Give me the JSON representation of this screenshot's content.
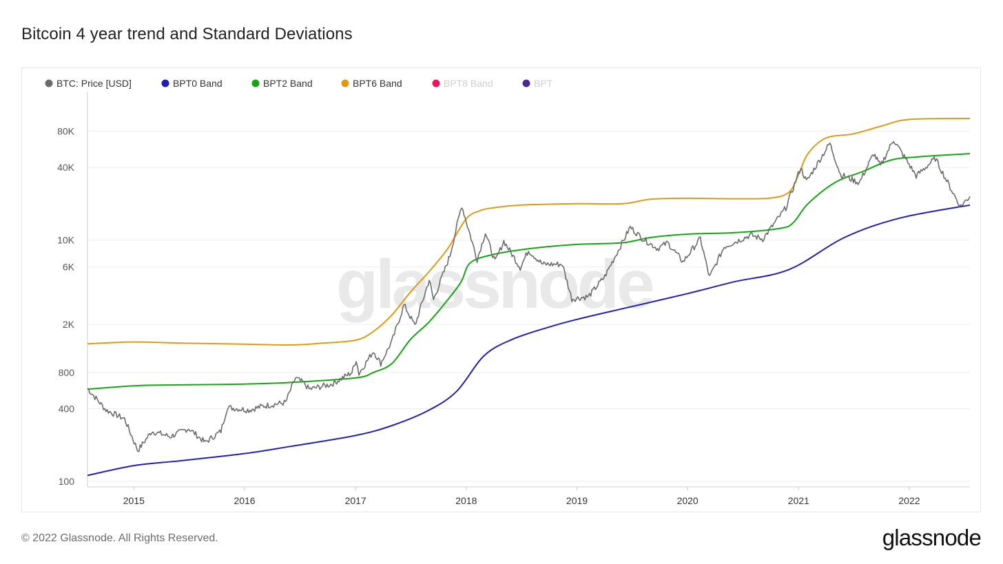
{
  "title": "Bitcoin 4 year trend and Standard Deviations",
  "footer": {
    "copyright": "© 2022 Glassnode. All Rights Reserved.",
    "logo_text": "glassnode"
  },
  "watermark": "glassnode",
  "colors": {
    "btc": "#6b6b6b",
    "bpt0": "#1f1fb4",
    "bpt2": "#13a613",
    "bpt6": "#e09a12",
    "bpt8": "#f0135e",
    "bpt": "#4a2a90",
    "grid": "#eeeeee",
    "axis": "#cccccc"
  },
  "chart_data": {
    "type": "line",
    "title": "Bitcoin 4 year trend and Standard Deviations",
    "y_scale": "log",
    "ylim": [
      90,
      170000
    ],
    "xlim": [
      "2014-08-01",
      "2022-07-20"
    ],
    "y_ticks": [
      {
        "value": 100,
        "label": "100"
      },
      {
        "value": 400,
        "label": "400"
      },
      {
        "value": 800,
        "label": "800"
      },
      {
        "value": 2000,
        "label": "2K"
      },
      {
        "value": 6000,
        "label": "6K"
      },
      {
        "value": 10000,
        "label": "10K"
      },
      {
        "value": 40000,
        "label": "40K"
      },
      {
        "value": 80000,
        "label": "80K"
      }
    ],
    "x_ticks": [
      "2015",
      "2016",
      "2017",
      "2018",
      "2019",
      "2020",
      "2021",
      "2022"
    ],
    "legend": {
      "placement": "top-left",
      "items": [
        {
          "key": "btc",
          "label": "BTC: Price [USD]",
          "active": true
        },
        {
          "key": "bpt0",
          "label": "BPT0 Band",
          "active": true
        },
        {
          "key": "bpt2",
          "label": "BPT2 Band",
          "active": true
        },
        {
          "key": "bpt6",
          "label": "BPT6 Band",
          "active": true
        },
        {
          "key": "bpt8",
          "label": "BPT8 Band",
          "active": false
        },
        {
          "key": "bpt",
          "label": "BPT",
          "active": false
        }
      ]
    },
    "grid": true,
    "series": [
      {
        "key": "bpt6",
        "name": "BPT6 Band",
        "points": [
          [
            "2014-08-01",
            1380
          ],
          [
            "2015-01-01",
            1430
          ],
          [
            "2015-06-01",
            1400
          ],
          [
            "2016-01-01",
            1370
          ],
          [
            "2016-06-01",
            1350
          ],
          [
            "2016-09-01",
            1390
          ],
          [
            "2017-01-01",
            1480
          ],
          [
            "2017-03-01",
            1750
          ],
          [
            "2017-05-01",
            2400
          ],
          [
            "2017-07-01",
            3700
          ],
          [
            "2017-09-01",
            5500
          ],
          [
            "2017-11-01",
            8500
          ],
          [
            "2018-01-01",
            15000
          ],
          [
            "2018-02-15",
            17500
          ],
          [
            "2018-04-01",
            18500
          ],
          [
            "2018-07-01",
            19500
          ],
          [
            "2019-01-01",
            20000
          ],
          [
            "2019-06-01",
            20000
          ],
          [
            "2019-09-01",
            21800
          ],
          [
            "2020-01-01",
            22200
          ],
          [
            "2020-06-01",
            22000
          ],
          [
            "2020-10-01",
            22300
          ],
          [
            "2020-12-01",
            25000
          ],
          [
            "2021-01-01",
            35000
          ],
          [
            "2021-02-01",
            52000
          ],
          [
            "2021-04-01",
            70000
          ],
          [
            "2021-07-01",
            76000
          ],
          [
            "2021-10-01",
            88000
          ],
          [
            "2022-01-01",
            100000
          ],
          [
            "2022-07-20",
            102000
          ]
        ]
      },
      {
        "key": "bpt2",
        "name": "BPT2 Band",
        "points": [
          [
            "2014-08-01",
            580
          ],
          [
            "2015-01-01",
            620
          ],
          [
            "2015-06-01",
            630
          ],
          [
            "2016-01-01",
            640
          ],
          [
            "2016-06-01",
            660
          ],
          [
            "2017-01-01",
            720
          ],
          [
            "2017-03-01",
            800
          ],
          [
            "2017-05-01",
            950
          ],
          [
            "2017-07-01",
            1500
          ],
          [
            "2017-09-01",
            2100
          ],
          [
            "2017-11-01",
            3200
          ],
          [
            "2017-12-15",
            4500
          ],
          [
            "2018-01-15",
            6500
          ],
          [
            "2018-04-01",
            7600
          ],
          [
            "2018-08-01",
            8500
          ],
          [
            "2019-01-01",
            9200
          ],
          [
            "2019-06-01",
            9500
          ],
          [
            "2019-09-01",
            10500
          ],
          [
            "2020-01-01",
            11200
          ],
          [
            "2020-06-01",
            11500
          ],
          [
            "2020-11-01",
            12500
          ],
          [
            "2020-12-15",
            14000
          ],
          [
            "2021-02-01",
            20000
          ],
          [
            "2021-05-01",
            30000
          ],
          [
            "2021-08-01",
            37000
          ],
          [
            "2021-11-01",
            46000
          ],
          [
            "2022-02-01",
            49000
          ],
          [
            "2022-07-20",
            52000
          ]
        ]
      },
      {
        "key": "bpt0",
        "name": "BPT0 Band",
        "points": [
          [
            "2014-08-01",
            112
          ],
          [
            "2015-01-01",
            135
          ],
          [
            "2015-06-01",
            148
          ],
          [
            "2016-01-01",
            170
          ],
          [
            "2016-06-01",
            195
          ],
          [
            "2017-01-01",
            240
          ],
          [
            "2017-05-01",
            290
          ],
          [
            "2017-09-01",
            390
          ],
          [
            "2017-12-01",
            560
          ],
          [
            "2018-03-01",
            1100
          ],
          [
            "2018-06-01",
            1500
          ],
          [
            "2018-10-01",
            1900
          ],
          [
            "2019-01-01",
            2200
          ],
          [
            "2019-06-01",
            2700
          ],
          [
            "2020-01-01",
            3600
          ],
          [
            "2020-06-01",
            4500
          ],
          [
            "2020-12-01",
            5700
          ],
          [
            "2021-06-01",
            10500
          ],
          [
            "2021-12-01",
            15200
          ],
          [
            "2022-07-20",
            19500
          ]
        ]
      },
      {
        "key": "btc",
        "name": "BTC: Price [USD]",
        "points": [
          [
            "2014-08-01",
            590
          ],
          [
            "2014-10-01",
            390
          ],
          [
            "2014-12-01",
            330
          ],
          [
            "2015-01-14",
            180
          ],
          [
            "2015-03-01",
            260
          ],
          [
            "2015-05-01",
            235
          ],
          [
            "2015-07-01",
            275
          ],
          [
            "2015-08-24",
            210
          ],
          [
            "2015-10-15",
            260
          ],
          [
            "2015-11-05",
            410
          ],
          [
            "2016-01-15",
            390
          ],
          [
            "2016-03-01",
            420
          ],
          [
            "2016-05-15",
            450
          ],
          [
            "2016-06-17",
            720
          ],
          [
            "2016-07-15",
            650
          ],
          [
            "2016-08-01",
            580
          ],
          [
            "2016-10-15",
            640
          ],
          [
            "2016-12-20",
            800
          ],
          [
            "2017-01-03",
            1020
          ],
          [
            "2017-01-12",
            780
          ],
          [
            "2017-03-01",
            1200
          ],
          [
            "2017-03-25",
            950
          ],
          [
            "2017-05-01",
            1450
          ],
          [
            "2017-06-10",
            2900
          ],
          [
            "2017-07-16",
            1950
          ],
          [
            "2017-09-01",
            4700
          ],
          [
            "2017-09-15",
            3200
          ],
          [
            "2017-11-08",
            7400
          ],
          [
            "2017-12-17",
            19400
          ],
          [
            "2018-02-06",
            6900
          ],
          [
            "2018-03-05",
            11500
          ],
          [
            "2018-04-06",
            6600
          ],
          [
            "2018-05-05",
            9800
          ],
          [
            "2018-06-28",
            5900
          ],
          [
            "2018-07-25",
            8200
          ],
          [
            "2018-09-10",
            6300
          ],
          [
            "2018-11-14",
            6300
          ],
          [
            "2018-12-15",
            3250
          ],
          [
            "2019-02-08",
            3400
          ],
          [
            "2019-04-03",
            5000
          ],
          [
            "2019-06-26",
            12800
          ],
          [
            "2019-08-01",
            10500
          ],
          [
            "2019-09-24",
            8500
          ],
          [
            "2019-10-27",
            9500
          ],
          [
            "2019-12-17",
            6600
          ],
          [
            "2020-02-12",
            10300
          ],
          [
            "2020-03-13",
            4900
          ],
          [
            "2020-05-01",
            8800
          ],
          [
            "2020-07-27",
            11000
          ],
          [
            "2020-09-05",
            10200
          ],
          [
            "2020-11-20",
            18500
          ],
          [
            "2021-01-08",
            40000
          ],
          [
            "2021-01-27",
            30500
          ],
          [
            "2021-04-14",
            63500
          ],
          [
            "2021-05-19",
            35000
          ],
          [
            "2021-07-20",
            29800
          ],
          [
            "2021-09-06",
            52000
          ],
          [
            "2021-09-28",
            41000
          ],
          [
            "2021-11-10",
            68000
          ],
          [
            "2022-01-24",
            34000
          ],
          [
            "2022-03-28",
            47500
          ],
          [
            "2022-05-12",
            28500
          ],
          [
            "2022-06-18",
            19000
          ],
          [
            "2022-07-20",
            23000
          ]
        ]
      }
    ]
  }
}
